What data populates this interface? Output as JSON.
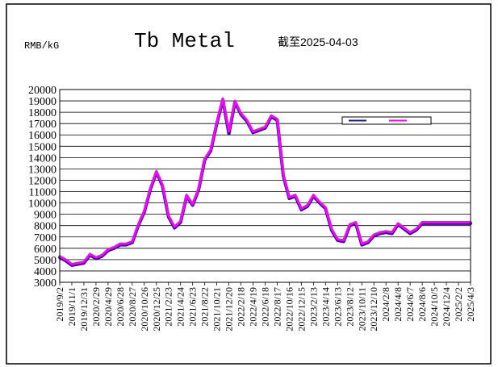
{
  "chart_data": {
    "type": "line",
    "title": "Tb Metal",
    "subtitle": "截至2025-04-03",
    "ylabel": "RMB/kG",
    "xlabel": "",
    "ylim": [
      3000,
      20000
    ],
    "yticks": [
      3000,
      4000,
      5000,
      6000,
      7000,
      8000,
      9000,
      10000,
      11000,
      12000,
      13000,
      14000,
      15000,
      16000,
      17000,
      18000,
      19000,
      20000
    ],
    "xtick_labels": [
      "2019/9/2",
      "2019/11/1",
      "2019/12/31",
      "2020/2/29",
      "2020/4/29",
      "2020/6/28",
      "2020/8/27",
      "2020/10/26",
      "2020/12/25",
      "2021/2/23",
      "2021/4/24",
      "2021/6/23",
      "2021/8/22",
      "2021/10/21",
      "2021/12/20",
      "2022/2/18",
      "2022/4/19",
      "2022/6/18",
      "2022/8/17",
      "2022/10/16",
      "2022/12/15",
      "2023/2/13",
      "2023/4/14",
      "2023/6/13",
      "2023/8/12",
      "2023/10/11",
      "2023/12/10",
      "2024/2/8",
      "2024/4/8",
      "2024/6/7",
      "2024/8/6",
      "2024/10/5",
      "2024/12/4",
      "2025/2/2",
      "2025/4/3"
    ],
    "grid": true,
    "legend": "top-right",
    "series": [
      {
        "color": "#1a1a8c",
        "x": [
          "2019/9/2",
          "2019/10/2",
          "2019/11/1",
          "2019/12/1",
          "2019/12/31",
          "2020/1/30",
          "2020/2/29",
          "2020/3/30",
          "2020/4/29",
          "2020/5/29",
          "2020/6/28",
          "2020/7/28",
          "2020/8/27",
          "2020/9/26",
          "2020/10/26",
          "2020/11/25",
          "2020/12/25",
          "2021/1/24",
          "2021/2/23",
          "2021/3/25",
          "2021/4/24",
          "2021/5/24",
          "2021/6/23",
          "2021/7/23",
          "2021/8/22",
          "2021/9/21",
          "2021/10/21",
          "2021/11/20",
          "2021/12/20",
          "2022/1/19",
          "2022/2/18",
          "2022/3/20",
          "2022/4/19",
          "2022/5/19",
          "2022/6/18",
          "2022/7/18",
          "2022/8/17",
          "2022/9/16",
          "2022/10/16",
          "2022/11/15",
          "2022/12/15",
          "2023/1/14",
          "2023/2/13",
          "2023/3/15",
          "2023/4/14",
          "2023/5/14",
          "2023/6/13",
          "2023/7/13",
          "2023/8/12",
          "2023/9/11",
          "2023/10/11",
          "2023/11/10",
          "2023/12/10",
          "2024/1/9",
          "2024/2/8",
          "2024/3/9",
          "2024/4/8",
          "2024/5/8",
          "2024/6/7",
          "2024/7/7",
          "2024/8/6",
          "2024/9/5",
          "2024/10/5",
          "2024/11/4",
          "2024/12/4",
          "2025/1/3",
          "2025/2/2",
          "2025/3/4",
          "2025/4/3"
        ],
        "y": [
          5200,
          4900,
          4500,
          4600,
          4700,
          5400,
          5100,
          5300,
          5800,
          6000,
          6300,
          6300,
          6500,
          8000,
          9200,
          11200,
          12700,
          11500,
          8800,
          7800,
          8300,
          10600,
          9800,
          11200,
          13800,
          14600,
          17000,
          19100,
          16100,
          18900,
          17800,
          17200,
          16200,
          16400,
          16600,
          17600,
          17300,
          12400,
          10400,
          10600,
          9400,
          9700,
          10600,
          10000,
          9500,
          7600,
          6700,
          6600,
          8000,
          8200,
          6300,
          6500,
          7100,
          7300,
          7400,
          7300,
          8100,
          7700,
          7300,
          7600,
          8200,
          8200,
          8200,
          8200,
          8200,
          8200,
          8200,
          8200,
          8200
        ]
      },
      {
        "color": "#ff00ff",
        "x": [
          "2019/9/2",
          "2019/10/2",
          "2019/11/1",
          "2019/12/1",
          "2019/12/31",
          "2020/1/30",
          "2020/2/29",
          "2020/3/30",
          "2020/4/29",
          "2020/5/29",
          "2020/6/28",
          "2020/7/28",
          "2020/8/27",
          "2020/9/26",
          "2020/10/26",
          "2020/11/25",
          "2020/12/25",
          "2021/1/24",
          "2021/2/23",
          "2021/3/25",
          "2021/4/24",
          "2021/5/24",
          "2021/6/23",
          "2021/7/23",
          "2021/8/22",
          "2021/9/21",
          "2021/10/21",
          "2021/11/20",
          "2021/12/20",
          "2022/1/19",
          "2022/2/18",
          "2022/3/20",
          "2022/4/19",
          "2022/5/19",
          "2022/6/18",
          "2022/7/18",
          "2022/8/17",
          "2022/9/16",
          "2022/10/16",
          "2022/11/15",
          "2022/12/15",
          "2023/1/14",
          "2023/2/13",
          "2023/3/15",
          "2023/4/14",
          "2023/5/14",
          "2023/6/13",
          "2023/7/13",
          "2023/8/12",
          "2023/9/11",
          "2023/10/11",
          "2023/11/10",
          "2023/12/10",
          "2024/1/9",
          "2024/2/8",
          "2024/3/9",
          "2024/4/8",
          "2024/5/8",
          "2024/6/7",
          "2024/7/7",
          "2024/8/6",
          "2024/9/5",
          "2024/10/5",
          "2024/11/4",
          "2024/12/4",
          "2025/1/3",
          "2025/2/2",
          "2025/3/4",
          "2025/4/3"
        ],
        "y": [
          5300,
          5000,
          4600,
          4700,
          4800,
          5500,
          5200,
          5400,
          5900,
          6100,
          6400,
          6400,
          6600,
          8100,
          9300,
          11300,
          12800,
          11600,
          8900,
          7900,
          8400,
          10700,
          9900,
          11300,
          13900,
          14700,
          17100,
          19200,
          16300,
          19000,
          17900,
          17300,
          16300,
          16500,
          16700,
          17700,
          17400,
          12500,
          10500,
          10700,
          9500,
          9800,
          10700,
          10100,
          9600,
          7700,
          6800,
          6700,
          8100,
          8300,
          6400,
          6600,
          7200,
          7400,
          7500,
          7400,
          8200,
          7800,
          7400,
          7700,
          8300,
          8300,
          8300,
          8300,
          8300,
          8300,
          8300,
          8300,
          8300
        ]
      }
    ]
  }
}
